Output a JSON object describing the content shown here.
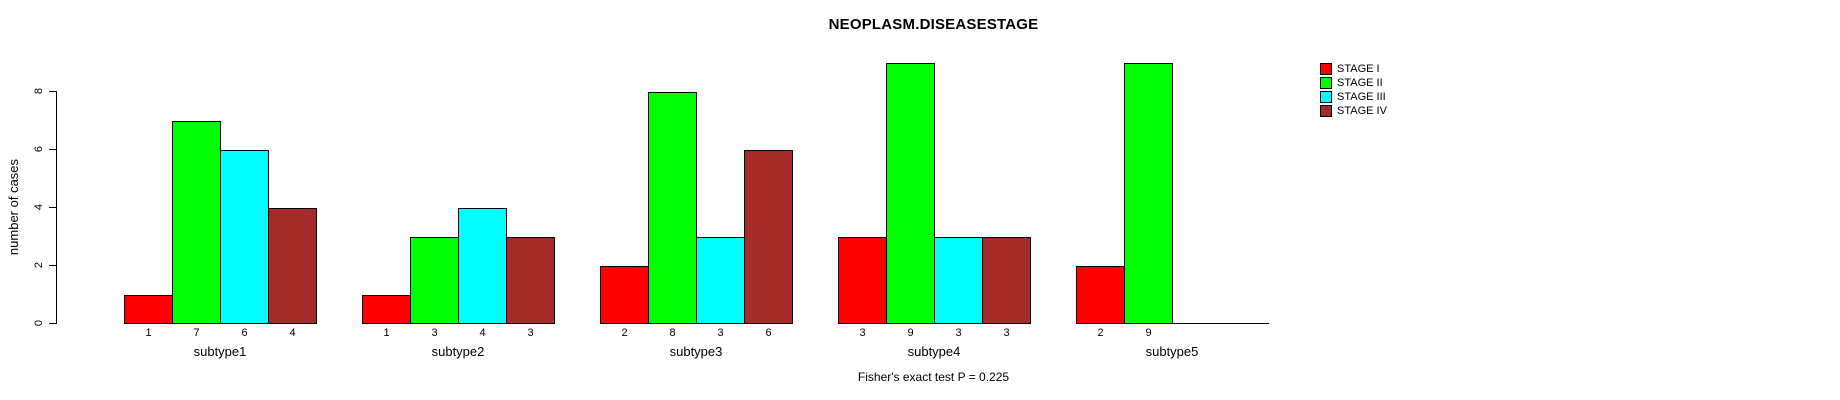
{
  "chart_data": {
    "type": "bar",
    "title": "NEOPLASM.DISEASESTAGE",
    "ylabel": "number of cases",
    "xlabel": "",
    "categories": [
      "subtype1",
      "subtype2",
      "subtype3",
      "subtype4",
      "subtype5"
    ],
    "series": [
      {
        "name": "STAGE I",
        "color": "#FF0000",
        "values": [
          1,
          1,
          2,
          3,
          2
        ]
      },
      {
        "name": "STAGE II",
        "color": "#00FF00",
        "values": [
          7,
          3,
          8,
          9,
          9
        ]
      },
      {
        "name": "STAGE III",
        "color": "#00FFFF",
        "values": [
          6,
          4,
          3,
          3,
          0
        ]
      },
      {
        "name": "STAGE IV",
        "color": "#A52A2A",
        "values": [
          4,
          3,
          6,
          3,
          0
        ]
      }
    ],
    "bar_count_labels": [
      [
        "1",
        "7",
        "6",
        "4"
      ],
      [
        "1",
        "3",
        "4",
        "3"
      ],
      [
        "2",
        "8",
        "3",
        "6"
      ],
      [
        "3",
        "9",
        "3",
        "3"
      ],
      [
        "2",
        "9",
        "",
        ""
      ]
    ],
    "y_ticks": [
      "0",
      "2",
      "4",
      "6",
      "8"
    ],
    "ylim": [
      0,
      9
    ],
    "grid": false,
    "legend_position": "right",
    "annotation": "Fisher's exact test P = 0.225",
    "axis_color": "#000000",
    "background_color": "#ffffff"
  }
}
